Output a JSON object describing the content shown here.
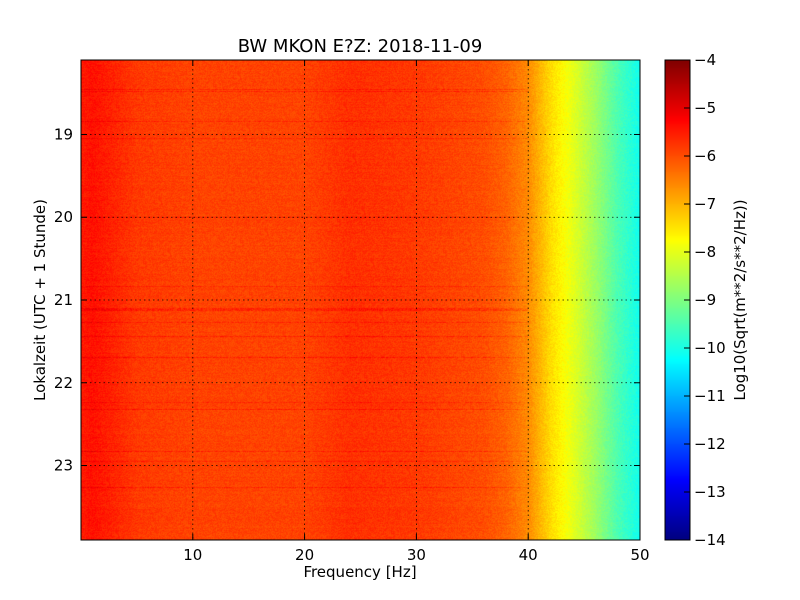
{
  "chart_data": {
    "type": "heatmap",
    "title": "BW MKON E?Z: 2018-11-09",
    "xlabel": "Frequency [Hz]",
    "ylabel": "Lokalzeit (UTC + 1 Stunde)",
    "colorbar_label": "Log10(Sqrt(m**2/s**2/Hz))",
    "xlim": [
      0,
      50
    ],
    "ylim": [
      18.1,
      23.9
    ],
    "x_ticks": [
      10,
      20,
      30,
      40,
      50
    ],
    "y_ticks": [
      19,
      20,
      21,
      22,
      23
    ],
    "color_range": [
      -14,
      -4
    ],
    "colorbar_ticks": [
      -4,
      -5,
      -6,
      -7,
      -8,
      -9,
      -10,
      -11,
      -12,
      -13,
      -14
    ],
    "colormap": "jet",
    "grid": true,
    "y_axis_inverted": true,
    "spectrum_profile": {
      "frequency_hz": [
        0,
        1,
        5,
        10,
        20,
        24,
        30,
        36,
        38,
        40,
        42,
        44,
        46,
        48,
        50
      ],
      "log10_amplitude": [
        -5.5,
        -5.4,
        -5.8,
        -5.9,
        -5.9,
        -5.7,
        -5.8,
        -6.0,
        -6.2,
        -6.6,
        -7.4,
        -8.0,
        -8.7,
        -9.5,
        -10.1
      ]
    }
  }
}
